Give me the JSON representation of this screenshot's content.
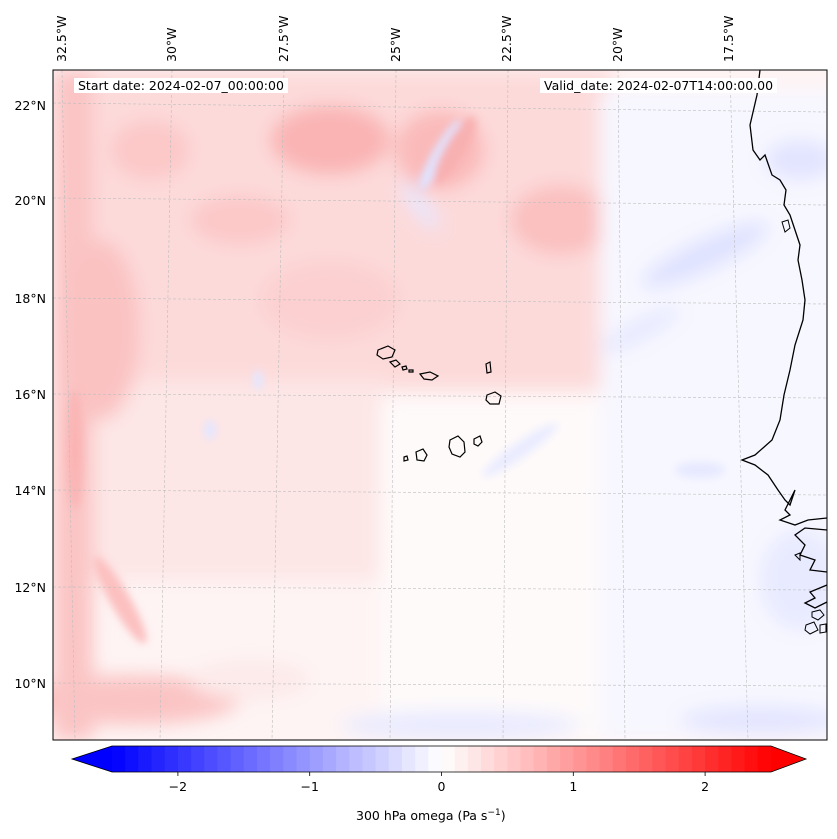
{
  "map": {
    "title_left": "Start date: 2024-02-07_00:00:00",
    "title_right": "Valid_date: 2024-02-07T14:00:00.00",
    "longitude_labels": [
      "32.5°W",
      "30°W",
      "27.5°W",
      "25°W",
      "22.5°W",
      "20°W",
      "17.5°W"
    ],
    "latitude_labels": [
      "22°N",
      "20°N",
      "18°N",
      "16°N",
      "14°N",
      "12°N",
      "10°N"
    ],
    "field": "300 hPa omega",
    "region": "Cape Verde Islands and West African coast"
  },
  "colorbar": {
    "label_prefix": "300 hPa omega (Pa s",
    "label_exp": "−1",
    "label_suffix": ")",
    "ticks": [
      "−2",
      "−1",
      "0",
      "1",
      "2"
    ],
    "tick_values": [
      -2,
      -1,
      0,
      1,
      2
    ],
    "range": [
      -2.5,
      2.5
    ],
    "colormap": "bwr",
    "low_color": "#0000ff",
    "mid_color": "#ffffff",
    "high_color": "#ff0000"
  }
}
